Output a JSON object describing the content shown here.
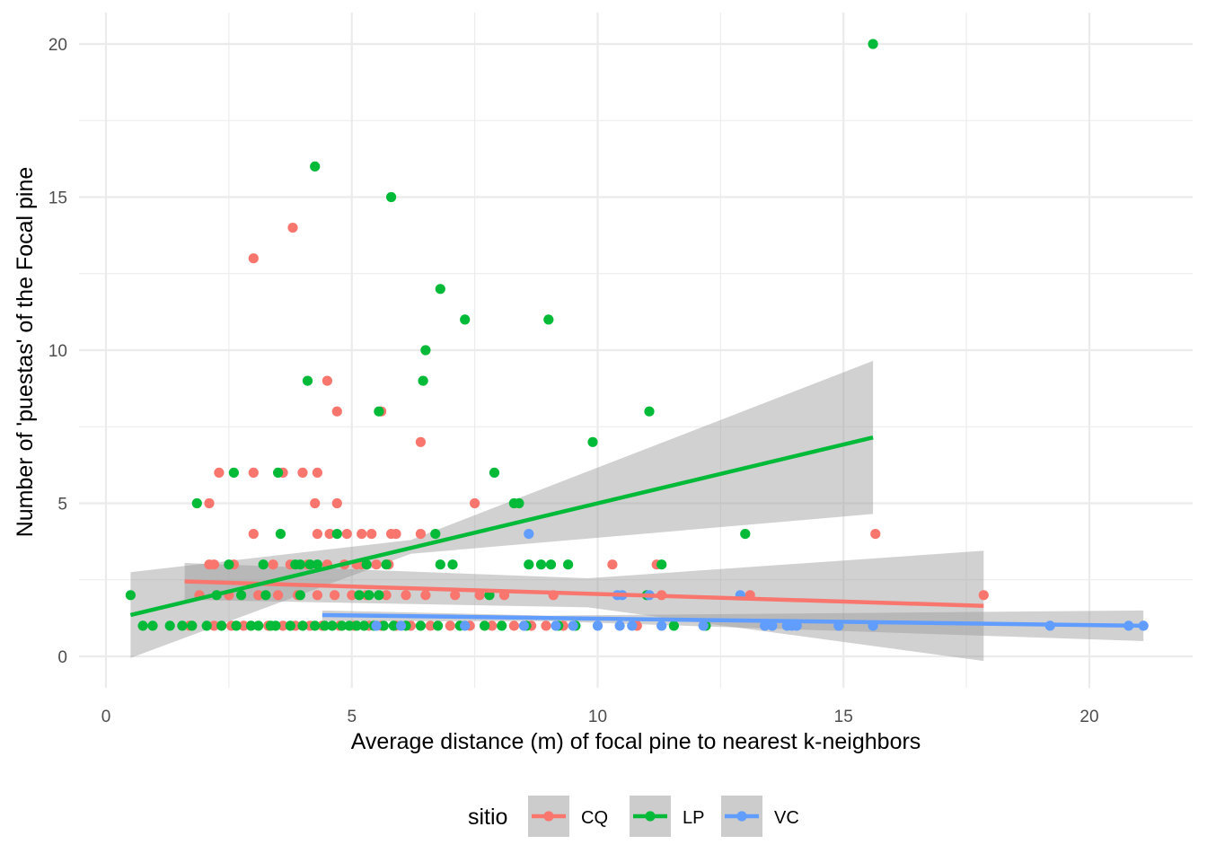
{
  "chart_data": {
    "type": "scatter",
    "xlabel": "Average distance (m) of focal pine to nearest k-neighbors",
    "ylabel": "Number of 'puestas' of the Focal pine",
    "xlim": [
      -1,
      21.6
    ],
    "ylim": [
      -1,
      21
    ],
    "x_ticks": [
      0,
      5,
      10,
      15,
      20
    ],
    "y_ticks": [
      0,
      5,
      10,
      15,
      20
    ],
    "x_tick_labels": [
      "0",
      "5",
      "10",
      "15",
      "20"
    ],
    "y_tick_labels": [
      "0",
      "5",
      "10",
      "15",
      "20"
    ],
    "grid": true,
    "legend": {
      "title": "sitio",
      "position": "bottom"
    },
    "series": [
      {
        "name": "CQ",
        "color": "#F8766D",
        "points": [
          [
            3.0,
            13
          ],
          [
            3.8,
            14
          ],
          [
            4.5,
            9
          ],
          [
            4.7,
            8
          ],
          [
            5.6,
            8
          ],
          [
            6.4,
            7
          ],
          [
            2.3,
            6
          ],
          [
            3.0,
            6
          ],
          [
            3.6,
            6
          ],
          [
            4.0,
            6
          ],
          [
            4.3,
            6
          ],
          [
            2.1,
            5
          ],
          [
            4.25,
            5
          ],
          [
            4.7,
            5
          ],
          [
            7.5,
            5
          ],
          [
            3.0,
            4
          ],
          [
            4.3,
            4
          ],
          [
            4.55,
            4
          ],
          [
            4.9,
            4
          ],
          [
            5.2,
            4
          ],
          [
            5.4,
            4
          ],
          [
            5.8,
            4
          ],
          [
            5.9,
            4
          ],
          [
            6.4,
            4
          ],
          [
            15.65,
            4
          ],
          [
            2.1,
            3
          ],
          [
            2.2,
            3
          ],
          [
            2.6,
            3
          ],
          [
            3.4,
            3
          ],
          [
            3.75,
            3
          ],
          [
            4.1,
            3
          ],
          [
            4.5,
            3
          ],
          [
            4.85,
            3
          ],
          [
            5.1,
            3
          ],
          [
            5.2,
            3
          ],
          [
            5.5,
            3
          ],
          [
            5.75,
            3
          ],
          [
            10.3,
            3
          ],
          [
            11.2,
            3
          ],
          [
            1.9,
            2
          ],
          [
            2.5,
            2
          ],
          [
            3.1,
            2
          ],
          [
            3.5,
            2
          ],
          [
            3.9,
            2
          ],
          [
            4.3,
            2
          ],
          [
            4.65,
            2
          ],
          [
            5.0,
            2
          ],
          [
            5.3,
            2
          ],
          [
            5.7,
            2
          ],
          [
            6.1,
            2
          ],
          [
            6.5,
            2
          ],
          [
            7.1,
            2
          ],
          [
            7.6,
            2
          ],
          [
            8.1,
            2
          ],
          [
            9.1,
            2
          ],
          [
            11.3,
            2
          ],
          [
            13.1,
            2
          ],
          [
            17.85,
            2
          ],
          [
            1.7,
            1
          ],
          [
            2.2,
            1
          ],
          [
            2.55,
            1
          ],
          [
            2.8,
            1
          ],
          [
            3.3,
            1
          ],
          [
            3.6,
            1
          ],
          [
            3.85,
            1
          ],
          [
            4.15,
            1
          ],
          [
            4.4,
            1
          ],
          [
            4.75,
            1
          ],
          [
            5.05,
            1
          ],
          [
            5.35,
            1
          ],
          [
            5.6,
            1
          ],
          [
            5.9,
            1
          ],
          [
            6.2,
            1
          ],
          [
            6.6,
            1
          ],
          [
            7.0,
            1
          ],
          [
            7.4,
            1
          ],
          [
            7.85,
            1
          ],
          [
            8.3,
            1
          ],
          [
            8.65,
            1
          ],
          [
            8.95,
            1
          ],
          [
            9.3,
            1
          ],
          [
            10.8,
            1
          ]
        ]
      },
      {
        "name": "LP",
        "color": "#00BA38",
        "points": [
          [
            15.6,
            20
          ],
          [
            4.25,
            16
          ],
          [
            5.8,
            15
          ],
          [
            6.8,
            12
          ],
          [
            7.3,
            11
          ],
          [
            9.0,
            11
          ],
          [
            6.5,
            10
          ],
          [
            4.1,
            9
          ],
          [
            6.45,
            9
          ],
          [
            5.55,
            8
          ],
          [
            11.05,
            8
          ],
          [
            9.9,
            7
          ],
          [
            7.9,
            6
          ],
          [
            2.6,
            6
          ],
          [
            3.5,
            6
          ],
          [
            1.85,
            5
          ],
          [
            8.3,
            5
          ],
          [
            8.4,
            5
          ],
          [
            3.55,
            4
          ],
          [
            4.7,
            4
          ],
          [
            6.7,
            4
          ],
          [
            13.0,
            4
          ],
          [
            2.5,
            3
          ],
          [
            3.2,
            3
          ],
          [
            3.85,
            3
          ],
          [
            3.95,
            3
          ],
          [
            4.15,
            3
          ],
          [
            4.3,
            3
          ],
          [
            5.3,
            3
          ],
          [
            5.7,
            3
          ],
          [
            6.8,
            3
          ],
          [
            7.05,
            3
          ],
          [
            8.6,
            3
          ],
          [
            8.85,
            3
          ],
          [
            9.05,
            3
          ],
          [
            9.4,
            3
          ],
          [
            11.3,
            3
          ],
          [
            0.5,
            2
          ],
          [
            2.25,
            2
          ],
          [
            2.75,
            2
          ],
          [
            3.25,
            2
          ],
          [
            3.95,
            2
          ],
          [
            5.15,
            2
          ],
          [
            5.35,
            2
          ],
          [
            5.55,
            2
          ],
          [
            7.8,
            2
          ],
          [
            11.0,
            2
          ],
          [
            0.75,
            1
          ],
          [
            0.95,
            1
          ],
          [
            1.3,
            1
          ],
          [
            1.55,
            1
          ],
          [
            1.75,
            1
          ],
          [
            2.05,
            1
          ],
          [
            2.35,
            1
          ],
          [
            2.65,
            1
          ],
          [
            2.95,
            1
          ],
          [
            3.1,
            1
          ],
          [
            3.35,
            1
          ],
          [
            3.45,
            1
          ],
          [
            3.75,
            1
          ],
          [
            4.0,
            1
          ],
          [
            4.25,
            1
          ],
          [
            4.45,
            1
          ],
          [
            4.6,
            1
          ],
          [
            4.8,
            1
          ],
          [
            4.95,
            1
          ],
          [
            5.1,
            1
          ],
          [
            5.25,
            1
          ],
          [
            5.45,
            1
          ],
          [
            5.65,
            1
          ],
          [
            5.85,
            1
          ],
          [
            6.1,
            1
          ],
          [
            6.4,
            1
          ],
          [
            6.75,
            1
          ],
          [
            7.2,
            1
          ],
          [
            7.7,
            1
          ],
          [
            8.05,
            1
          ],
          [
            8.55,
            1
          ],
          [
            9.2,
            1
          ],
          [
            9.55,
            1
          ],
          [
            11.55,
            1
          ],
          [
            12.2,
            1
          ]
        ]
      },
      {
        "name": "VC",
        "color": "#619CFF",
        "points": [
          [
            8.6,
            4
          ],
          [
            10.4,
            2
          ],
          [
            10.5,
            2
          ],
          [
            11.05,
            2
          ],
          [
            12.9,
            2
          ],
          [
            5.5,
            1
          ],
          [
            6.0,
            1
          ],
          [
            7.3,
            1
          ],
          [
            8.5,
            1
          ],
          [
            9.15,
            1
          ],
          [
            9.5,
            1
          ],
          [
            10.0,
            1
          ],
          [
            10.45,
            1
          ],
          [
            10.7,
            1
          ],
          [
            11.3,
            1
          ],
          [
            12.15,
            1
          ],
          [
            13.4,
            1
          ],
          [
            13.55,
            1
          ],
          [
            13.85,
            1
          ],
          [
            13.95,
            1
          ],
          [
            14.05,
            1
          ],
          [
            14.9,
            1
          ],
          [
            15.6,
            1
          ],
          [
            19.2,
            1
          ],
          [
            20.8,
            1
          ],
          [
            21.1,
            1
          ]
        ]
      }
    ],
    "fit_lines": [
      {
        "series": "CQ",
        "x": [
          1.6,
          17.85
        ],
        "y": [
          2.45,
          1.65
        ],
        "ci_upper": [
          3.05,
          3.45
        ],
        "ci_lower": [
          1.85,
          -0.15
        ],
        "ci_mid_x": 9.8,
        "ci_mid_upper": 2.55,
        "ci_mid_lower": 1.6
      },
      {
        "series": "LP",
        "x": [
          0.5,
          15.6
        ],
        "y": [
          1.35,
          7.15
        ],
        "ci_upper": [
          2.75,
          9.65
        ],
        "ci_lower": [
          -0.05,
          4.65
        ],
        "ci_mid_x": 6.2,
        "ci_mid_upper": 3.8,
        "ci_mid_lower": 3.35
      },
      {
        "series": "VC",
        "x": [
          4.4,
          21.1
        ],
        "y": [
          1.35,
          1.0
        ],
        "ci_upper": [
          1.5,
          1.5
        ],
        "ci_lower": [
          1.15,
          0.5
        ],
        "ci_mid_x": 9.0,
        "ci_mid_upper": 1.33,
        "ci_mid_lower": 1.15
      }
    ],
    "ci_fill": "#999999"
  }
}
